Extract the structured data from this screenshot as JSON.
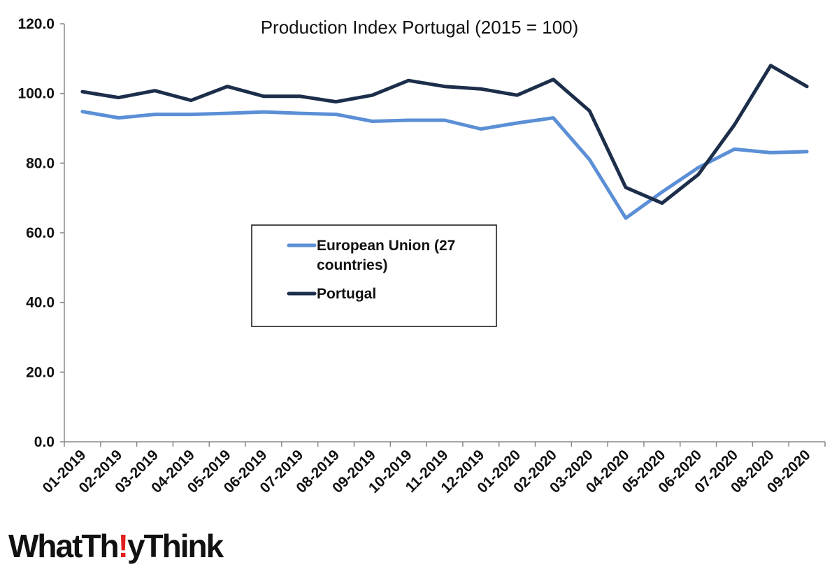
{
  "brand": {
    "logo_text": "WhatTheyThink",
    "accent_color": "#e02020"
  },
  "chart_data": {
    "type": "line",
    "title": "Production Index Portugal (2015 = 100)",
    "xlabel": "",
    "ylabel": "",
    "ylim": [
      0,
      120
    ],
    "yticks": [
      "0.0",
      "20.0",
      "40.0",
      "60.0",
      "80.0",
      "100.0",
      "120.0"
    ],
    "categories": [
      "01-2019",
      "02-2019",
      "03-2019",
      "04-2019",
      "05-2019",
      "06-2019",
      "07-2019",
      "08-2019",
      "09-2019",
      "10-2019",
      "11-2019",
      "12-2019",
      "01-2020",
      "02-2020",
      "03-2020",
      "04-2020",
      "05-2020",
      "06-2020",
      "07-2020",
      "08-2020",
      "09-2020"
    ],
    "series": [
      {
        "name": "European Union (27 countries)",
        "legend_lines": [
          "European Union (27",
          "countries)"
        ],
        "color": "#5b8fd6",
        "values": [
          94.8,
          93.0,
          94.0,
          94.0,
          94.3,
          94.7,
          94.3,
          94.0,
          92.0,
          92.3,
          92.3,
          89.8,
          91.5,
          93.0,
          81.0,
          64.2,
          71.7,
          78.7,
          84.0,
          83.0,
          83.3
        ]
      },
      {
        "name": "Portugal",
        "legend_lines": [
          "Portugal"
        ],
        "color": "#1c2e4a",
        "values": [
          100.5,
          98.8,
          100.8,
          98.0,
          102.0,
          99.2,
          99.2,
          97.6,
          99.5,
          103.7,
          102.0,
          101.3,
          99.5,
          104.0,
          95.0,
          73.0,
          68.5,
          76.7,
          91.0,
          108.0,
          102.0
        ]
      }
    ],
    "grid": false,
    "legend_position": "center-left"
  }
}
